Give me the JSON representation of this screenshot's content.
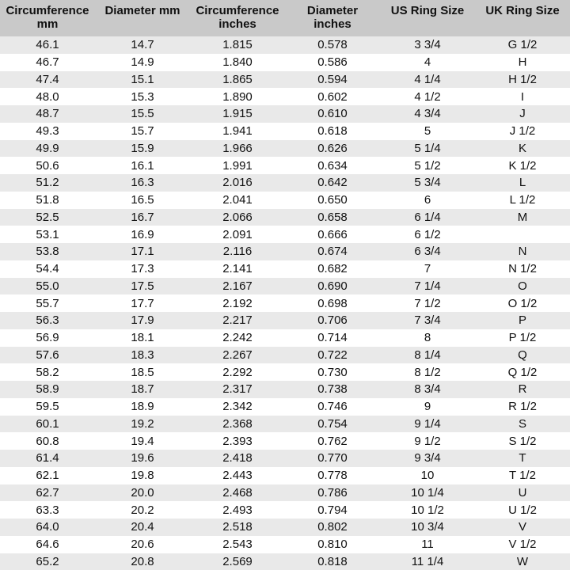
{
  "columns": [
    "Circumference mm",
    "Diameter mm",
    "Circumference inches",
    "Diameter inches",
    "US Ring Size",
    "UK Ring Size"
  ],
  "header_lines": [
    [
      "Circumference",
      "mm"
    ],
    [
      "Diameter mm",
      ""
    ],
    [
      "Circumference",
      "inches"
    ],
    [
      "Diameter",
      "inches"
    ],
    [
      "US Ring Size",
      ""
    ],
    [
      "UK Ring Size",
      ""
    ]
  ],
  "colors": {
    "header_bg": "#c9c9c9",
    "row_alt_bg": "#e9e9e9",
    "row_bg": "#ffffff"
  },
  "rows": [
    [
      "46.1",
      "14.7",
      "1.815",
      "0.578",
      "3 3/4",
      "G 1/2"
    ],
    [
      "46.7",
      "14.9",
      "1.840",
      "0.586",
      "4",
      "H"
    ],
    [
      "47.4",
      "15.1",
      "1.865",
      "0.594",
      "4 1/4",
      "H 1/2"
    ],
    [
      "48.0",
      "15.3",
      "1.890",
      "0.602",
      "4 1/2",
      "I"
    ],
    [
      "48.7",
      "15.5",
      "1.915",
      "0.610",
      "4 3/4",
      "J"
    ],
    [
      "49.3",
      "15.7",
      "1.941",
      "0.618",
      "5",
      "J 1/2"
    ],
    [
      "49.9",
      "15.9",
      "1.966",
      "0.626",
      "5 1/4",
      "K"
    ],
    [
      "50.6",
      "16.1",
      "1.991",
      "0.634",
      "5 1/2",
      "K 1/2"
    ],
    [
      "51.2",
      "16.3",
      "2.016",
      "0.642",
      "5 3/4",
      "L"
    ],
    [
      "51.8",
      "16.5",
      "2.041",
      "0.650",
      "6",
      "L 1/2"
    ],
    [
      "52.5",
      "16.7",
      "2.066",
      "0.658",
      "6 1/4",
      "M"
    ],
    [
      "53.1",
      "16.9",
      "2.091",
      "0.666",
      "6 1/2",
      ""
    ],
    [
      "53.8",
      "17.1",
      "2.116",
      "0.674",
      "6 3/4",
      "N"
    ],
    [
      "54.4",
      "17.3",
      "2.141",
      "0.682",
      "7",
      "N 1/2"
    ],
    [
      "55.0",
      "17.5",
      "2.167",
      "0.690",
      "7 1/4",
      "O"
    ],
    [
      "55.7",
      "17.7",
      "2.192",
      "0.698",
      "7 1/2",
      "O 1/2"
    ],
    [
      "56.3",
      "17.9",
      "2.217",
      "0.706",
      "7 3/4",
      "P"
    ],
    [
      "56.9",
      "18.1",
      "2.242",
      "0.714",
      "8",
      "P 1/2"
    ],
    [
      "57.6",
      "18.3",
      "2.267",
      "0.722",
      "8 1/4",
      "Q"
    ],
    [
      "58.2",
      "18.5",
      "2.292",
      "0.730",
      "8 1/2",
      "Q 1/2"
    ],
    [
      "58.9",
      "18.7",
      "2.317",
      "0.738",
      "8 3/4",
      "R"
    ],
    [
      "59.5",
      "18.9",
      "2.342",
      "0.746",
      "9",
      "R 1/2"
    ],
    [
      "60.1",
      "19.2",
      "2.368",
      "0.754",
      "9 1/4",
      "S"
    ],
    [
      "60.8",
      "19.4",
      "2.393",
      "0.762",
      "9 1/2",
      "S 1/2"
    ],
    [
      "61.4",
      "19.6",
      "2.418",
      "0.770",
      "9 3/4",
      "T"
    ],
    [
      "62.1",
      "19.8",
      "2.443",
      "0.778",
      "10",
      "T 1/2"
    ],
    [
      "62.7",
      "20.0",
      "2.468",
      "0.786",
      "10 1/4",
      "U"
    ],
    [
      "63.3",
      "20.2",
      "2.493",
      "0.794",
      "10 1/2",
      "U 1/2"
    ],
    [
      "64.0",
      "20.4",
      "2.518",
      "0.802",
      "10 3/4",
      "V"
    ],
    [
      "64.6",
      "20.6",
      "2.543",
      "0.810",
      "11",
      "V 1/2"
    ],
    [
      "65.2",
      "20.8",
      "2.569",
      "0.818",
      "11 1/4",
      "W"
    ]
  ]
}
